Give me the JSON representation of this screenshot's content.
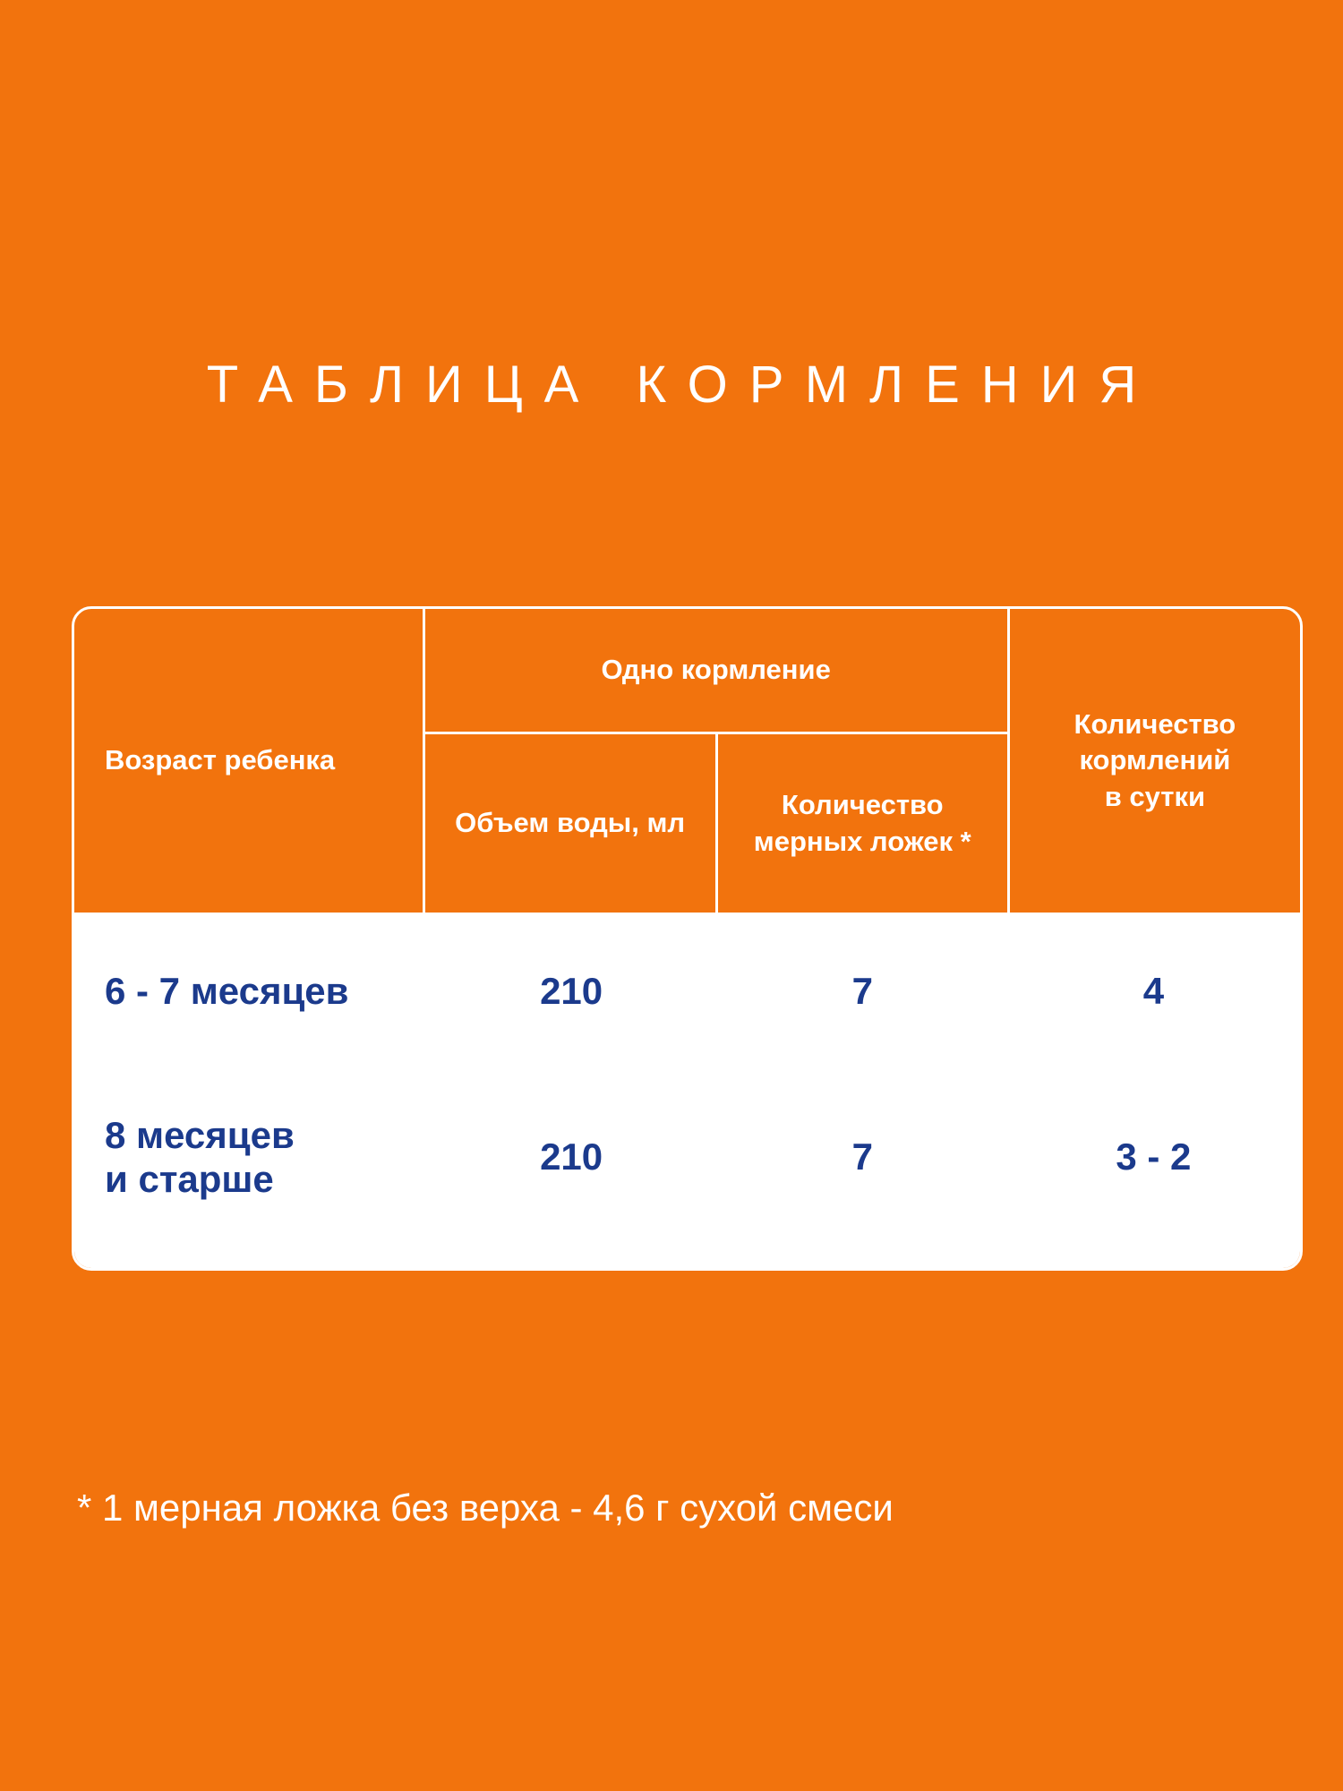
{
  "page": {
    "title": "ТАБЛИЦА КОРМЛЕНИЯ",
    "footnote": "* 1 мерная ложка без верха - 4,6 г сухой смеси"
  },
  "colors": {
    "background_orange": "#F2730D",
    "table_border_white": "#FFFFFF",
    "body_text_navy": "#1B3A8C"
  },
  "table": {
    "header": {
      "age": "Возраст ребенка",
      "group": "Одно кормление",
      "water": "Объем воды, мл",
      "spoons": "Количество\nмерных ложек *",
      "feedings": "Количество\nкормлений\nв сутки"
    },
    "rows": [
      {
        "age": "6 - 7 месяцев",
        "water": "210",
        "spoons": "7",
        "feedings": "4"
      },
      {
        "age": "8 месяцев\nи старше",
        "water": "210",
        "spoons": "7",
        "feedings": "3 - 2"
      }
    ]
  },
  "chart_data": {
    "type": "table",
    "title": "ТАБЛИЦА КОРМЛЕНИЯ",
    "column_groups": [
      {
        "label": "Одно кормление",
        "columns": [
          "Объем воды, мл",
          "Количество мерных ложек *"
        ]
      }
    ],
    "columns": [
      "Возраст ребенка",
      "Объем воды, мл",
      "Количество мерных ложек *",
      "Количество кормлений в сутки"
    ],
    "rows": [
      [
        "6 - 7 месяцев",
        210,
        7,
        "4"
      ],
      [
        "8 месяцев и старше",
        210,
        7,
        "3 - 2"
      ]
    ],
    "footnote": "* 1 мерная ложка без верха - 4,6 г сухой смеси"
  }
}
